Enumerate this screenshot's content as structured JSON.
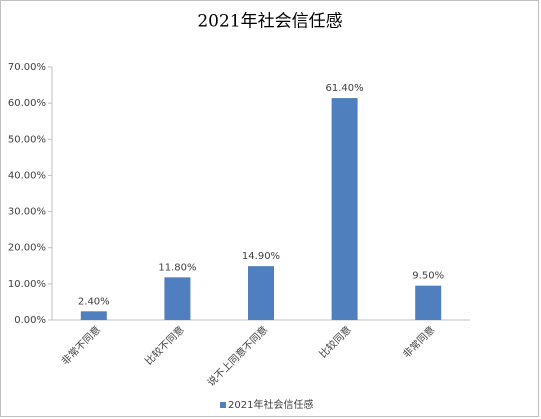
{
  "chart_data": {
    "type": "bar",
    "title": "2021年社会信任感",
    "categories": [
      "非常不同意",
      "比较不同意",
      "说不上同意不同意",
      "比较同意",
      "非常同意"
    ],
    "series": [
      {
        "name": "2021年社会信任感",
        "color": "#4f7fbf",
        "values": [
          2.4,
          11.8,
          14.9,
          61.4,
          9.5
        ],
        "value_labels": [
          "2.40%",
          "11.80%",
          "14.90%",
          "61.40%",
          "9.50%"
        ]
      }
    ],
    "ylim": [
      0,
      70
    ],
    "yticks": [
      {
        "value": 0,
        "label": "0.00%"
      },
      {
        "value": 10,
        "label": "10.00%"
      },
      {
        "value": 20,
        "label": "20.00%"
      },
      {
        "value": 30,
        "label": "30.00%"
      },
      {
        "value": 40,
        "label": "40.00%"
      },
      {
        "value": 50,
        "label": "50.00%"
      },
      {
        "value": 60,
        "label": "60.00%"
      },
      {
        "value": 70,
        "label": "70.00%"
      }
    ],
    "grid": false,
    "legend": "bottom"
  }
}
